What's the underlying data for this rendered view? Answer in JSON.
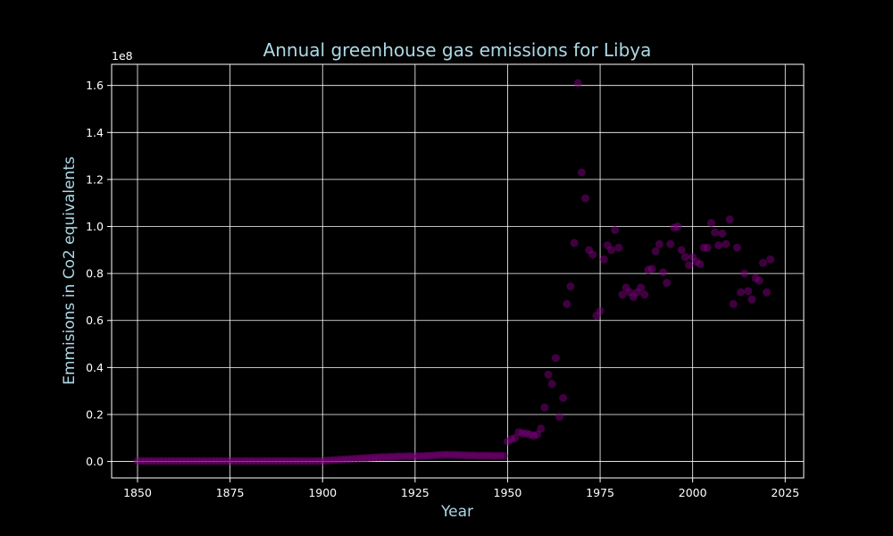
{
  "chart_data": {
    "type": "scatter",
    "title": "Annual greenhouse gas emissions for Libya",
    "xlabel": "Year",
    "ylabel": "Emmisions in Co2 equivalents",
    "y_offset_label": "1e8",
    "xlim": [
      1843,
      2030
    ],
    "ylim": [
      -0.07,
      1.69
    ],
    "y_scale_factor": 100000000,
    "x_ticks": [
      1850,
      1875,
      1900,
      1925,
      1950,
      1975,
      2000,
      2025
    ],
    "y_ticks": [
      0.0,
      0.2,
      0.4,
      0.6,
      0.8,
      1.0,
      1.2,
      1.4,
      1.6
    ],
    "y_tick_labels": [
      "0.0",
      "0.2",
      "0.4",
      "0.6",
      "0.8",
      "1.0",
      "1.2",
      "1.4",
      "1.6"
    ],
    "grid": true,
    "colors": {
      "background": "#000000",
      "marker": "#800080",
      "title_text": "#add8e6",
      "tick_text": "#ffffff",
      "grid": "#ffffff"
    },
    "marker_alpha": 0.5,
    "series": [
      {
        "x": [
          1850,
          1851,
          1852,
          1853,
          1854,
          1855,
          1856,
          1857,
          1858,
          1859,
          1860,
          1861,
          1862,
          1863,
          1864,
          1865,
          1866,
          1867,
          1868,
          1869,
          1870,
          1871,
          1872,
          1873,
          1874,
          1875,
          1876,
          1877,
          1878,
          1879,
          1880,
          1881,
          1882,
          1883,
          1884,
          1885,
          1886,
          1887,
          1888,
          1889,
          1890,
          1891,
          1892,
          1893,
          1894,
          1895,
          1896,
          1897,
          1898,
          1899,
          1900,
          1901,
          1902,
          1903,
          1904,
          1905,
          1906,
          1907,
          1908,
          1909,
          1910,
          1911,
          1912,
          1913,
          1914,
          1915,
          1916,
          1917,
          1918,
          1919,
          1920,
          1921,
          1922,
          1923,
          1924,
          1925,
          1926,
          1927,
          1928,
          1929,
          1930,
          1931,
          1932,
          1933,
          1934,
          1935,
          1936,
          1937,
          1938,
          1939,
          1940,
          1941,
          1942,
          1943,
          1944,
          1945,
          1946,
          1947,
          1948,
          1949,
          1950,
          1951,
          1952,
          1953,
          1954,
          1955,
          1956,
          1957,
          1958,
          1959,
          1960,
          1961,
          1962,
          1963,
          1964,
          1965,
          1966,
          1967,
          1968,
          1969,
          1970,
          1971,
          1972,
          1973,
          1974,
          1975,
          1976,
          1977,
          1978,
          1979,
          1980,
          1981,
          1982,
          1983,
          1984,
          1985,
          1986,
          1987,
          1988,
          1989,
          1990,
          1991,
          1992,
          1993,
          1994,
          1995,
          1996,
          1997,
          1998,
          1999,
          2000,
          2001,
          2002,
          2003,
          2004,
          2005,
          2006,
          2007,
          2008,
          2009,
          2010,
          2011,
          2012,
          2013,
          2014,
          2015,
          2016,
          2017,
          2018,
          2019,
          2020,
          2021
        ],
        "y": [
          0.002,
          0.002,
          0.002,
          0.002,
          0.002,
          0.002,
          0.002,
          0.002,
          0.002,
          0.002,
          0.002,
          0.002,
          0.002,
          0.002,
          0.002,
          0.002,
          0.002,
          0.002,
          0.002,
          0.002,
          0.002,
          0.002,
          0.002,
          0.002,
          0.002,
          0.002,
          0.002,
          0.002,
          0.002,
          0.002,
          0.002,
          0.002,
          0.002,
          0.002,
          0.002,
          0.002,
          0.002,
          0.002,
          0.002,
          0.002,
          0.002,
          0.002,
          0.002,
          0.002,
          0.002,
          0.002,
          0.002,
          0.002,
          0.002,
          0.002,
          0.003,
          0.004,
          0.005,
          0.006,
          0.007,
          0.008,
          0.009,
          0.01,
          0.011,
          0.012,
          0.013,
          0.014,
          0.015,
          0.016,
          0.017,
          0.018,
          0.019,
          0.019,
          0.02,
          0.02,
          0.021,
          0.021,
          0.022,
          0.022,
          0.022,
          0.022,
          0.023,
          0.023,
          0.024,
          0.025,
          0.026,
          0.027,
          0.028,
          0.029,
          0.029,
          0.028,
          0.028,
          0.027,
          0.027,
          0.026,
          0.026,
          0.026,
          0.025,
          0.025,
          0.025,
          0.025,
          0.024,
          0.024,
          0.024,
          0.024,
          0.085,
          0.095,
          0.1,
          0.125,
          0.12,
          0.12,
          0.115,
          0.11,
          0.115,
          0.14,
          0.23,
          0.37,
          0.33,
          0.44,
          0.19,
          0.27,
          0.67,
          0.745,
          0.93,
          1.61,
          1.23,
          1.12,
          0.9,
          0.88,
          0.62,
          0.64,
          0.86,
          0.92,
          0.9,
          0.985,
          0.91,
          0.71,
          0.74,
          0.72,
          0.7,
          0.72,
          0.74,
          0.71,
          0.815,
          0.82,
          0.895,
          0.925,
          0.805,
          0.76,
          0.925,
          0.995,
          1.0,
          0.9,
          0.87,
          0.835,
          0.87,
          0.85,
          0.84,
          0.91,
          0.91,
          1.015,
          0.975,
          0.92,
          0.97,
          0.925,
          1.03,
          0.67,
          0.91,
          0.72,
          0.8,
          0.725,
          0.69,
          0.78,
          0.77,
          0.845,
          0.72,
          0.86
        ]
      }
    ]
  }
}
